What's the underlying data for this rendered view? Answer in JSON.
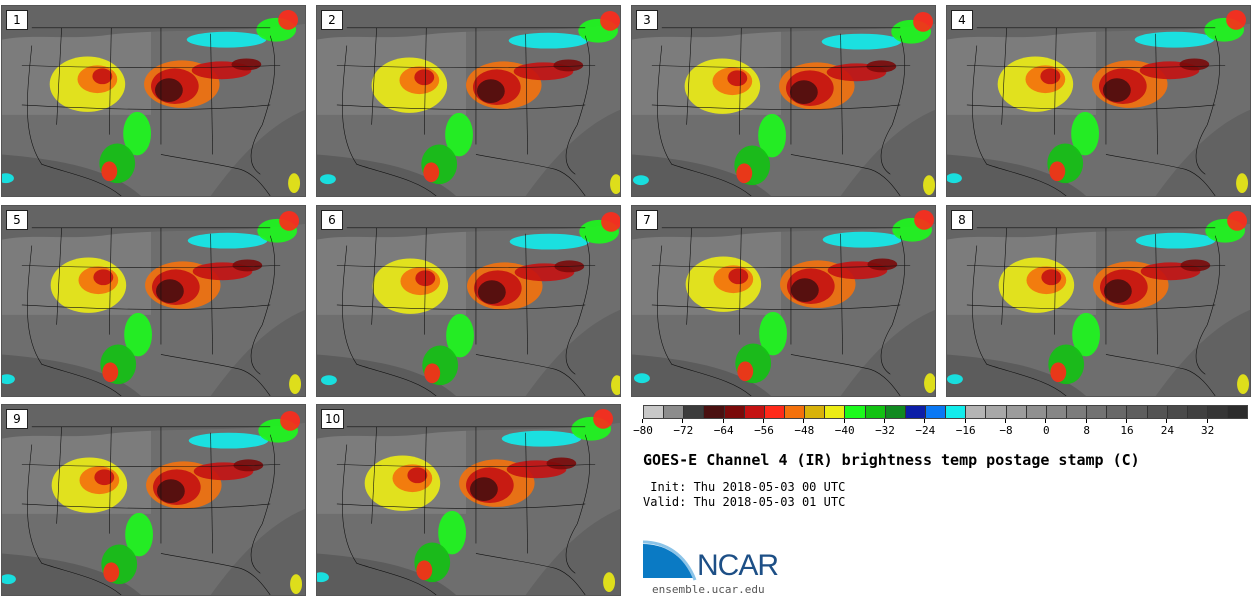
{
  "title": "GOES-E Channel 4 (IR) brightness temp postage stamp (C)",
  "init": " Init: Thu 2018-05-03 00 UTC",
  "valid": "Valid: Thu 2018-05-03 01 UTC",
  "url": "ensemble.ucar.edu",
  "logo": {
    "text": "NCAR"
  },
  "panels": [
    {
      "label": "1"
    },
    {
      "label": "2"
    },
    {
      "label": "3"
    },
    {
      "label": "4"
    },
    {
      "label": "5"
    },
    {
      "label": "6"
    },
    {
      "label": "7"
    },
    {
      "label": "8"
    },
    {
      "label": "9"
    },
    {
      "label": "10"
    }
  ],
  "colorbar": {
    "ticks": [
      "−80",
      "−72",
      "−64",
      "−56",
      "−48",
      "−40",
      "−32",
      "−24",
      "−16",
      "−8",
      "0",
      "8",
      "16",
      "24",
      "32"
    ],
    "colors": [
      "#c8c8c8",
      "#8c8c8c",
      "#3c3c3c",
      "#4a1010",
      "#7a0a0a",
      "#c41212",
      "#ff2a1a",
      "#f4710c",
      "#d8b20a",
      "#ecec14",
      "#1cfa1c",
      "#12c212",
      "#108a20",
      "#0c1ea8",
      "#0a78f4",
      "#12ecec",
      "#b4b4b4",
      "#a8a8a8",
      "#9c9c9c",
      "#909090",
      "#868686",
      "#7c7c7c",
      "#727272",
      "#686868",
      "#5e5e5e",
      "#545454",
      "#4a4a4a",
      "#404040",
      "#363636",
      "#2c2c2c"
    ]
  }
}
